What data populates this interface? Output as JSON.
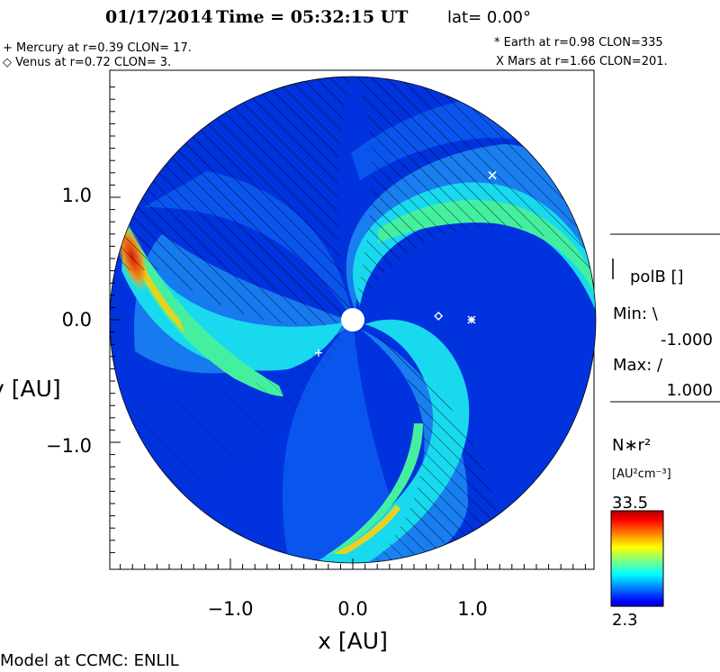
{
  "header": {
    "title_date": "01/17/2014",
    "title_time": "Time = 05:32:15 UT",
    "title_lat": "lat= 0.00°",
    "mercury": "+ Mercury at r=0.39 CLON= 17.",
    "venus": "◇ Venus at r=0.72 CLON=  3.",
    "earth": "* Earth at  r=0.98 CLON=335",
    "mars": "X Mars at r=1.66 CLON=201."
  },
  "side_panel": {
    "polb_label": "polB []",
    "min_label": "Min: \\",
    "min_value": "-1.000",
    "max_label": "Max: /",
    "max_value": "1.000",
    "colorbar_title": "N∗r²",
    "colorbar_unit": "[AU²cm⁻³]",
    "colorbar_max": "33.5",
    "colorbar_min": "2.3"
  },
  "footer": {
    "credit": "Model at CCMC: ENLIL"
  },
  "colors": {
    "background_level": "#0033dd",
    "sector_level": "#0a55ee",
    "mid_level": "#1d8cf3",
    "cyan_level": "#19d9ee",
    "green_level": "#44f0a0",
    "high_level": "#e8d21e",
    "peak_level": "#d81a0c"
  },
  "chart_data": {
    "type": "heatmap",
    "xlabel": "x [AU]",
    "ylabel": "y [AU]",
    "xlim": [
      -1.95,
      1.95
    ],
    "ylim": [
      -1.95,
      1.95
    ],
    "x_ticks": [
      -1.0,
      0.0,
      1.0
    ],
    "y_ticks": [
      1.0,
      0.0,
      -1.0
    ],
    "x_tick_labels": [
      "−1.0",
      "0.0",
      "1.0"
    ],
    "y_tick_labels": [
      "1.0",
      "0.0",
      "−1.0"
    ],
    "domain_radius_au": 1.95,
    "color_scale": {
      "min": 2.3,
      "max": 33.5,
      "colormap": "jet"
    },
    "planets": [
      {
        "name": "Mercury",
        "marker": "+",
        "r": 0.39,
        "clon": 17,
        "x": -0.28,
        "y": -0.27
      },
      {
        "name": "Venus",
        "marker": "◇",
        "r": 0.72,
        "clon": 3,
        "x": 0.7,
        "y": 0.03
      },
      {
        "name": "Earth",
        "marker": "*",
        "r": 0.98,
        "clon": 335,
        "x": 0.97,
        "y": 0.0
      },
      {
        "name": "Mars",
        "marker": "X",
        "r": 1.66,
        "clon": 201,
        "x": 1.14,
        "y": 1.18
      }
    ]
  }
}
